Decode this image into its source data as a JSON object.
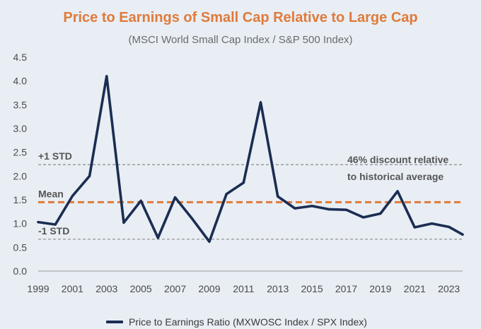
{
  "chart_data": {
    "type": "line",
    "title": "Price to Earnings of Small Cap Relative to Large Cap",
    "subtitle": "(MSCI World Small Cap Index / S&P 500 Index)",
    "xlabel": "",
    "ylabel": "",
    "ylim": [
      0,
      4.5
    ],
    "xlim": [
      1999,
      2023.8
    ],
    "yticks": [
      "0.0",
      "0.5",
      "1.0",
      "1.5",
      "2.0",
      "2.5",
      "3.0",
      "3.5",
      "4.0",
      "4.5"
    ],
    "xticks": [
      "1999",
      "2001",
      "2003",
      "2005",
      "2007",
      "2009",
      "2011",
      "2013",
      "2015",
      "2017",
      "2019",
      "2021",
      "2023"
    ],
    "grid": false,
    "legend_position": "bottom",
    "series": [
      {
        "name": "Price to Earnings Ratio (MXWOSC Index / SPX Index)",
        "color": "#1b2d52",
        "x": [
          1999,
          2000,
          2001,
          2002,
          2003,
          2004,
          2005,
          2006,
          2007,
          2008,
          2009,
          2010,
          2011,
          2012,
          2013,
          2014,
          2015,
          2016,
          2017,
          2018,
          2019,
          2020,
          2021,
          2022,
          2023,
          2023.8
        ],
        "values": [
          1.03,
          0.98,
          1.58,
          2.0,
          4.1,
          1.02,
          1.48,
          0.7,
          1.55,
          1.1,
          0.62,
          1.62,
          1.86,
          3.55,
          1.57,
          1.32,
          1.37,
          1.3,
          1.29,
          1.13,
          1.21,
          1.68,
          0.92,
          1.0,
          0.93,
          0.77
        ]
      }
    ],
    "reference_lines": [
      {
        "label": "+1 STD",
        "value": 2.24,
        "color": "#808080",
        "style": "dashed"
      },
      {
        "label": "Mean",
        "value": 1.45,
        "color": "#e07a3a",
        "style": "dashed"
      },
      {
        "label": "-1 STD",
        "value": 0.67,
        "color": "#808080",
        "style": "dashed"
      }
    ],
    "annotation": {
      "line1": "46% discount relative",
      "line2": "to historical average"
    }
  }
}
